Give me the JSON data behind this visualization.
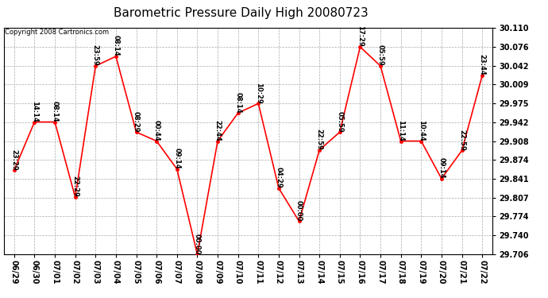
{
  "title": "Barometric Pressure Daily High 20080723",
  "copyright": "Copyright 2008 Cartronics.com",
  "x_labels": [
    "06/29",
    "06/30",
    "07/01",
    "07/02",
    "07/03",
    "07/04",
    "07/05",
    "07/06",
    "07/07",
    "07/08",
    "07/09",
    "07/10",
    "07/11",
    "07/12",
    "07/13",
    "07/14",
    "07/15",
    "07/16",
    "07/17",
    "07/18",
    "07/19",
    "07/20",
    "07/21",
    "07/22"
  ],
  "y_values": [
    29.856,
    29.942,
    29.942,
    29.808,
    30.042,
    30.059,
    29.924,
    29.908,
    29.858,
    29.706,
    29.908,
    29.958,
    29.975,
    29.824,
    29.765,
    29.892,
    29.924,
    30.076,
    30.042,
    29.908,
    29.908,
    29.841,
    29.891,
    30.025
  ],
  "time_labels": [
    "23:29",
    "14:14",
    "08:14",
    "22:29",
    "23:59",
    "08:14",
    "08:29",
    "00:44",
    "09:14",
    "00:00",
    "22:44",
    "08:14",
    "10:29",
    "04:29",
    "00:00",
    "22:59",
    "05:59",
    "17:29",
    "05:59",
    "11:14",
    "10:44",
    "09:14",
    "22:59",
    "23:44"
  ],
  "y_min": 29.706,
  "y_max": 30.11,
  "y_ticks": [
    29.706,
    29.74,
    29.774,
    29.807,
    29.841,
    29.874,
    29.908,
    29.942,
    29.975,
    30.009,
    30.042,
    30.076,
    30.11
  ],
  "line_color": "#FF0000",
  "marker_color": "#FF0000",
  "bg_color": "#FFFFFF",
  "plot_bg_color": "#FFFFFF",
  "grid_color": "#AAAAAA",
  "title_fontsize": 11,
  "tick_fontsize": 7,
  "label_fontsize": 6,
  "copyright_fontsize": 6
}
